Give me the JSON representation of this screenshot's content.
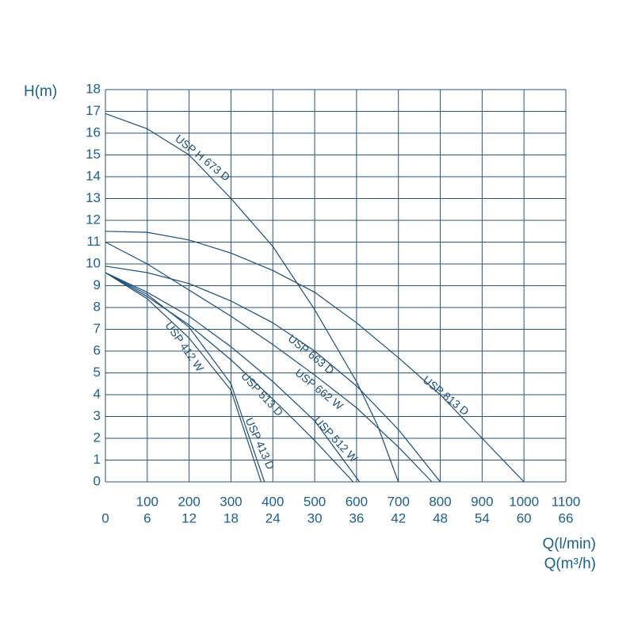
{
  "chart_data": {
    "type": "line",
    "ylabel": "H(m)",
    "xlabel": "Q(l/min)",
    "x2label": "Q(m³/h)",
    "xlim": [
      0,
      1100
    ],
    "xticks": [
      100,
      200,
      300,
      400,
      500,
      600,
      700,
      800,
      900,
      1000,
      1100
    ],
    "x2lim": [
      0,
      66
    ],
    "x2ticks": [
      0,
      6,
      12,
      18,
      24,
      30,
      36,
      42,
      48,
      54,
      60,
      66
    ],
    "ylim": [
      0,
      18
    ],
    "yticks": [
      0,
      1,
      2,
      3,
      4,
      5,
      6,
      7,
      8,
      9,
      10,
      11,
      12,
      13,
      14,
      15,
      16,
      17,
      18
    ],
    "grid": true,
    "series": [
      {
        "name": "USP H 673 D",
        "color": "#1d4f78",
        "x": [
          0,
          100,
          200,
          300,
          400,
          500,
          600,
          650,
          700
        ],
        "values": [
          16.9,
          16.2,
          15,
          13,
          10.8,
          7.9,
          4.6,
          2.6,
          0
        ]
      },
      {
        "name": "USP 813 D",
        "color": "#1d4f78",
        "x": [
          0,
          100,
          200,
          300,
          400,
          500,
          600,
          700,
          800,
          900,
          1000
        ],
        "values": [
          11.5,
          11.45,
          11.1,
          10.5,
          9.7,
          8.7,
          7.3,
          5.7,
          4,
          2,
          0
        ]
      },
      {
        "name": "USP 663 D",
        "color": "#1d4f78",
        "x": [
          0,
          100,
          200,
          300,
          400,
          500,
          600,
          700,
          800
        ],
        "values": [
          9.9,
          9.6,
          9.1,
          8.3,
          7.3,
          6,
          4.4,
          2.4,
          0
        ]
      },
      {
        "name": "USP 662 W",
        "color": "#1d4f78",
        "x": [
          0,
          100,
          200,
          300,
          400,
          500,
          600,
          700,
          780
        ],
        "values": [
          11,
          10,
          8.8,
          7.6,
          6.3,
          4.9,
          3.4,
          1.6,
          0
        ]
      },
      {
        "name": "USP 512 W",
        "color": "#1d4f78",
        "x": [
          0,
          100,
          200,
          300,
          400,
          500,
          607
        ],
        "values": [
          9.6,
          8.7,
          7.6,
          6.2,
          4.6,
          2.8,
          0
        ]
      },
      {
        "name": "USP 513 D",
        "color": "#1d4f78",
        "x": [
          0,
          100,
          200,
          300,
          400,
          500,
          592
        ],
        "values": [
          9.6,
          8.5,
          7.2,
          5.6,
          3.8,
          1.9,
          0
        ]
      },
      {
        "name": "USP 412 W",
        "color": "#1d4f78",
        "x": [
          0,
          100,
          200,
          300,
          372
        ],
        "values": [
          9.6,
          8.4,
          6.6,
          4.2,
          0
        ]
      },
      {
        "name": "USP 413 D",
        "color": "#1d4f78",
        "x": [
          0,
          100,
          200,
          300,
          380
        ],
        "values": [
          9.6,
          8.6,
          7.1,
          4.5,
          0
        ]
      }
    ]
  }
}
